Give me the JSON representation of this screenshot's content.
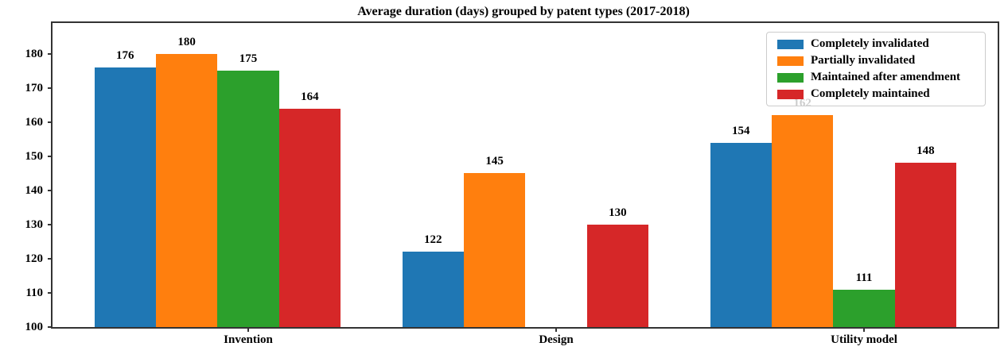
{
  "chart_data": {
    "type": "bar",
    "title": "Average duration (days) grouped by patent types (2017-2018)",
    "categories": [
      "Invention",
      "Design",
      "Utility model"
    ],
    "series": [
      {
        "name": "Completely invalidated",
        "color": "#1f77b4",
        "values": [
          176,
          122,
          154
        ]
      },
      {
        "name": "Partially invalidated",
        "color": "#ff7f0e",
        "values": [
          180,
          145,
          162
        ]
      },
      {
        "name": "Maintained after amendment",
        "color": "#2ca02c",
        "values": [
          175,
          null,
          111
        ]
      },
      {
        "name": "Completely maintained",
        "color": "#d62728",
        "values": [
          164,
          130,
          148
        ]
      }
    ],
    "xlabel": "",
    "ylabel": "",
    "ylim": [
      100,
      189
    ],
    "yticks": [
      100,
      110,
      120,
      130,
      140,
      150,
      160,
      170,
      180
    ],
    "bar_value_labels": true,
    "grid": false,
    "legend_position": "upper right",
    "notes": "No bar is drawn for 'Maintained after amendment' in the Design group; the '162' value label of the Utility model orange bar is partially obscured (grayed) behind the semi-transparent legend box."
  }
}
